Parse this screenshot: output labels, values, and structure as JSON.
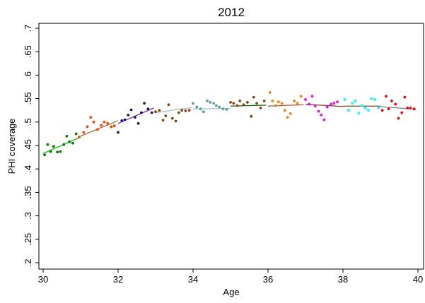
{
  "chart_data": {
    "type": "scatter",
    "title": "2012",
    "xlabel": "Age",
    "ylabel": "PHI coverage",
    "xlim": [
      30,
      40
    ],
    "ylim": [
      0.2,
      0.7
    ],
    "x_ticks": [
      30,
      32,
      34,
      36,
      38,
      40
    ],
    "x_tick_labels": [
      "30",
      "32",
      "34",
      "36",
      "38",
      "40"
    ],
    "y_ticks": [
      0.2,
      0.25,
      0.3,
      0.35,
      0.4,
      0.45,
      0.5,
      0.55,
      0.6,
      0.65,
      0.7
    ],
    "y_tick_labels": [
      ".2",
      ".25",
      ".3",
      ".35",
      ".4",
      ".45",
      ".5",
      ".55",
      ".6",
      ".65",
      ".7"
    ],
    "grid": false,
    "legend": "none",
    "series": [
      {
        "color": "#008000",
        "fit_color": "#00c000",
        "fit": [
          [
            30.0,
            0.433
          ],
          [
            31.0,
            0.468
          ]
        ],
        "x": [
          30.04,
          30.12,
          30.2,
          30.28,
          30.38,
          30.46,
          30.55,
          30.63,
          30.7,
          30.79,
          30.88
        ],
        "y": [
          0.43,
          0.452,
          0.437,
          0.448,
          0.436,
          0.437,
          0.452,
          0.47,
          0.458,
          0.455,
          0.475
        ]
      },
      {
        "color": "#ff4500",
        "fit_color": "#c06030",
        "fit": [
          [
            31.0,
            0.47
          ],
          [
            32.0,
            0.503
          ]
        ],
        "x": [
          30.96,
          31.08,
          31.18,
          31.27,
          31.35,
          31.45,
          31.55,
          31.63,
          31.72,
          31.82,
          31.9
        ],
        "y": [
          0.468,
          0.478,
          0.49,
          0.51,
          0.5,
          0.484,
          0.493,
          0.5,
          0.497,
          0.49,
          0.492
        ]
      },
      {
        "color": "#191970",
        "fit_color": "#8020c0",
        "fit": [
          [
            32.0,
            0.497
          ],
          [
            32.95,
            0.53
          ]
        ],
        "x": [
          32.0,
          32.1,
          32.18,
          32.27,
          32.35,
          32.45,
          32.54,
          32.62,
          32.7,
          32.8,
          32.9
        ],
        "y": [
          0.478,
          0.503,
          0.505,
          0.515,
          0.526,
          0.51,
          0.497,
          0.52,
          0.54,
          0.528,
          0.52
        ]
      },
      {
        "color": "#8b4513",
        "fit_color": "#b0c0c0",
        "fit": [
          [
            33.0,
            0.52
          ],
          [
            33.95,
            0.531
          ]
        ],
        "x": [
          33.0,
          33.1,
          33.2,
          33.27,
          33.35,
          33.45,
          33.54,
          33.62,
          33.7,
          33.8,
          33.9
        ],
        "y": [
          0.522,
          0.525,
          0.504,
          0.513,
          0.537,
          0.508,
          0.502,
          0.52,
          0.525,
          0.524,
          0.525
        ]
      },
      {
        "color": "#5f9ea0",
        "fit_color": "#a0c8d0",
        "fit": [
          [
            34.0,
            0.528
          ],
          [
            35.0,
            0.529
          ]
        ],
        "x": [
          34.0,
          34.1,
          34.2,
          34.28,
          34.38,
          34.46,
          34.55,
          34.62,
          34.7,
          34.8,
          34.9
        ],
        "y": [
          0.54,
          0.532,
          0.528,
          0.522,
          0.545,
          0.542,
          0.54,
          0.535,
          0.532,
          0.528,
          0.527
        ]
      },
      {
        "color": "#8b4513",
        "fit_color": "#006400",
        "fit": [
          [
            35.0,
            0.534
          ],
          [
            35.95,
            0.536
          ]
        ],
        "x": [
          35.0,
          35.08,
          35.18,
          35.25,
          35.35,
          35.45,
          35.55,
          35.62,
          35.7,
          35.8,
          35.9
        ],
        "y": [
          0.542,
          0.54,
          0.535,
          0.545,
          0.537,
          0.542,
          0.512,
          0.553,
          0.54,
          0.53,
          0.545
        ]
      },
      {
        "color": "#ff7f00",
        "fit_color": "#b05030",
        "fit": [
          [
            36.0,
            0.534
          ],
          [
            36.95,
            0.537
          ]
        ],
        "x": [
          36.05,
          36.12,
          36.2,
          36.28,
          36.37,
          36.45,
          36.52,
          36.6,
          36.7,
          36.78,
          36.88
        ],
        "y": [
          0.563,
          0.545,
          0.535,
          0.543,
          0.54,
          0.525,
          0.51,
          0.518,
          0.545,
          0.54,
          0.555
        ]
      },
      {
        "color": "#ff00ff",
        "fit_color": "#8b4513",
        "fit": [
          [
            37.0,
            0.538
          ],
          [
            38.0,
            0.533
          ]
        ],
        "x": [
          37.0,
          37.1,
          37.18,
          37.26,
          37.35,
          37.42,
          37.5,
          37.58,
          37.68,
          37.76,
          37.85
        ],
        "y": [
          0.548,
          0.538,
          0.555,
          0.534,
          0.523,
          0.515,
          0.505,
          0.532,
          0.538,
          0.54,
          0.543
        ]
      },
      {
        "color": "#00ffff",
        "fit_color": "#8b4513",
        "fit": [
          [
            38.0,
            0.534
          ],
          [
            39.0,
            0.534
          ]
        ],
        "x": [
          38.05,
          38.15,
          38.25,
          38.33,
          38.42,
          38.5,
          38.6,
          38.68,
          38.76,
          38.85,
          38.95
        ],
        "y": [
          0.548,
          0.525,
          0.54,
          0.545,
          0.519,
          0.535,
          0.53,
          0.525,
          0.55,
          0.548,
          0.53
        ]
      },
      {
        "color": "#ff0000",
        "fit_color": "#708090",
        "fit": [
          [
            39.0,
            0.533
          ],
          [
            39.95,
            0.527
          ]
        ],
        "x": [
          39.05,
          39.15,
          39.22,
          39.3,
          39.4,
          39.48,
          39.57,
          39.65,
          39.72,
          39.8,
          39.9
        ],
        "y": [
          0.525,
          0.555,
          0.528,
          0.545,
          0.538,
          0.508,
          0.52,
          0.553,
          0.53,
          0.53,
          0.528
        ]
      }
    ]
  }
}
